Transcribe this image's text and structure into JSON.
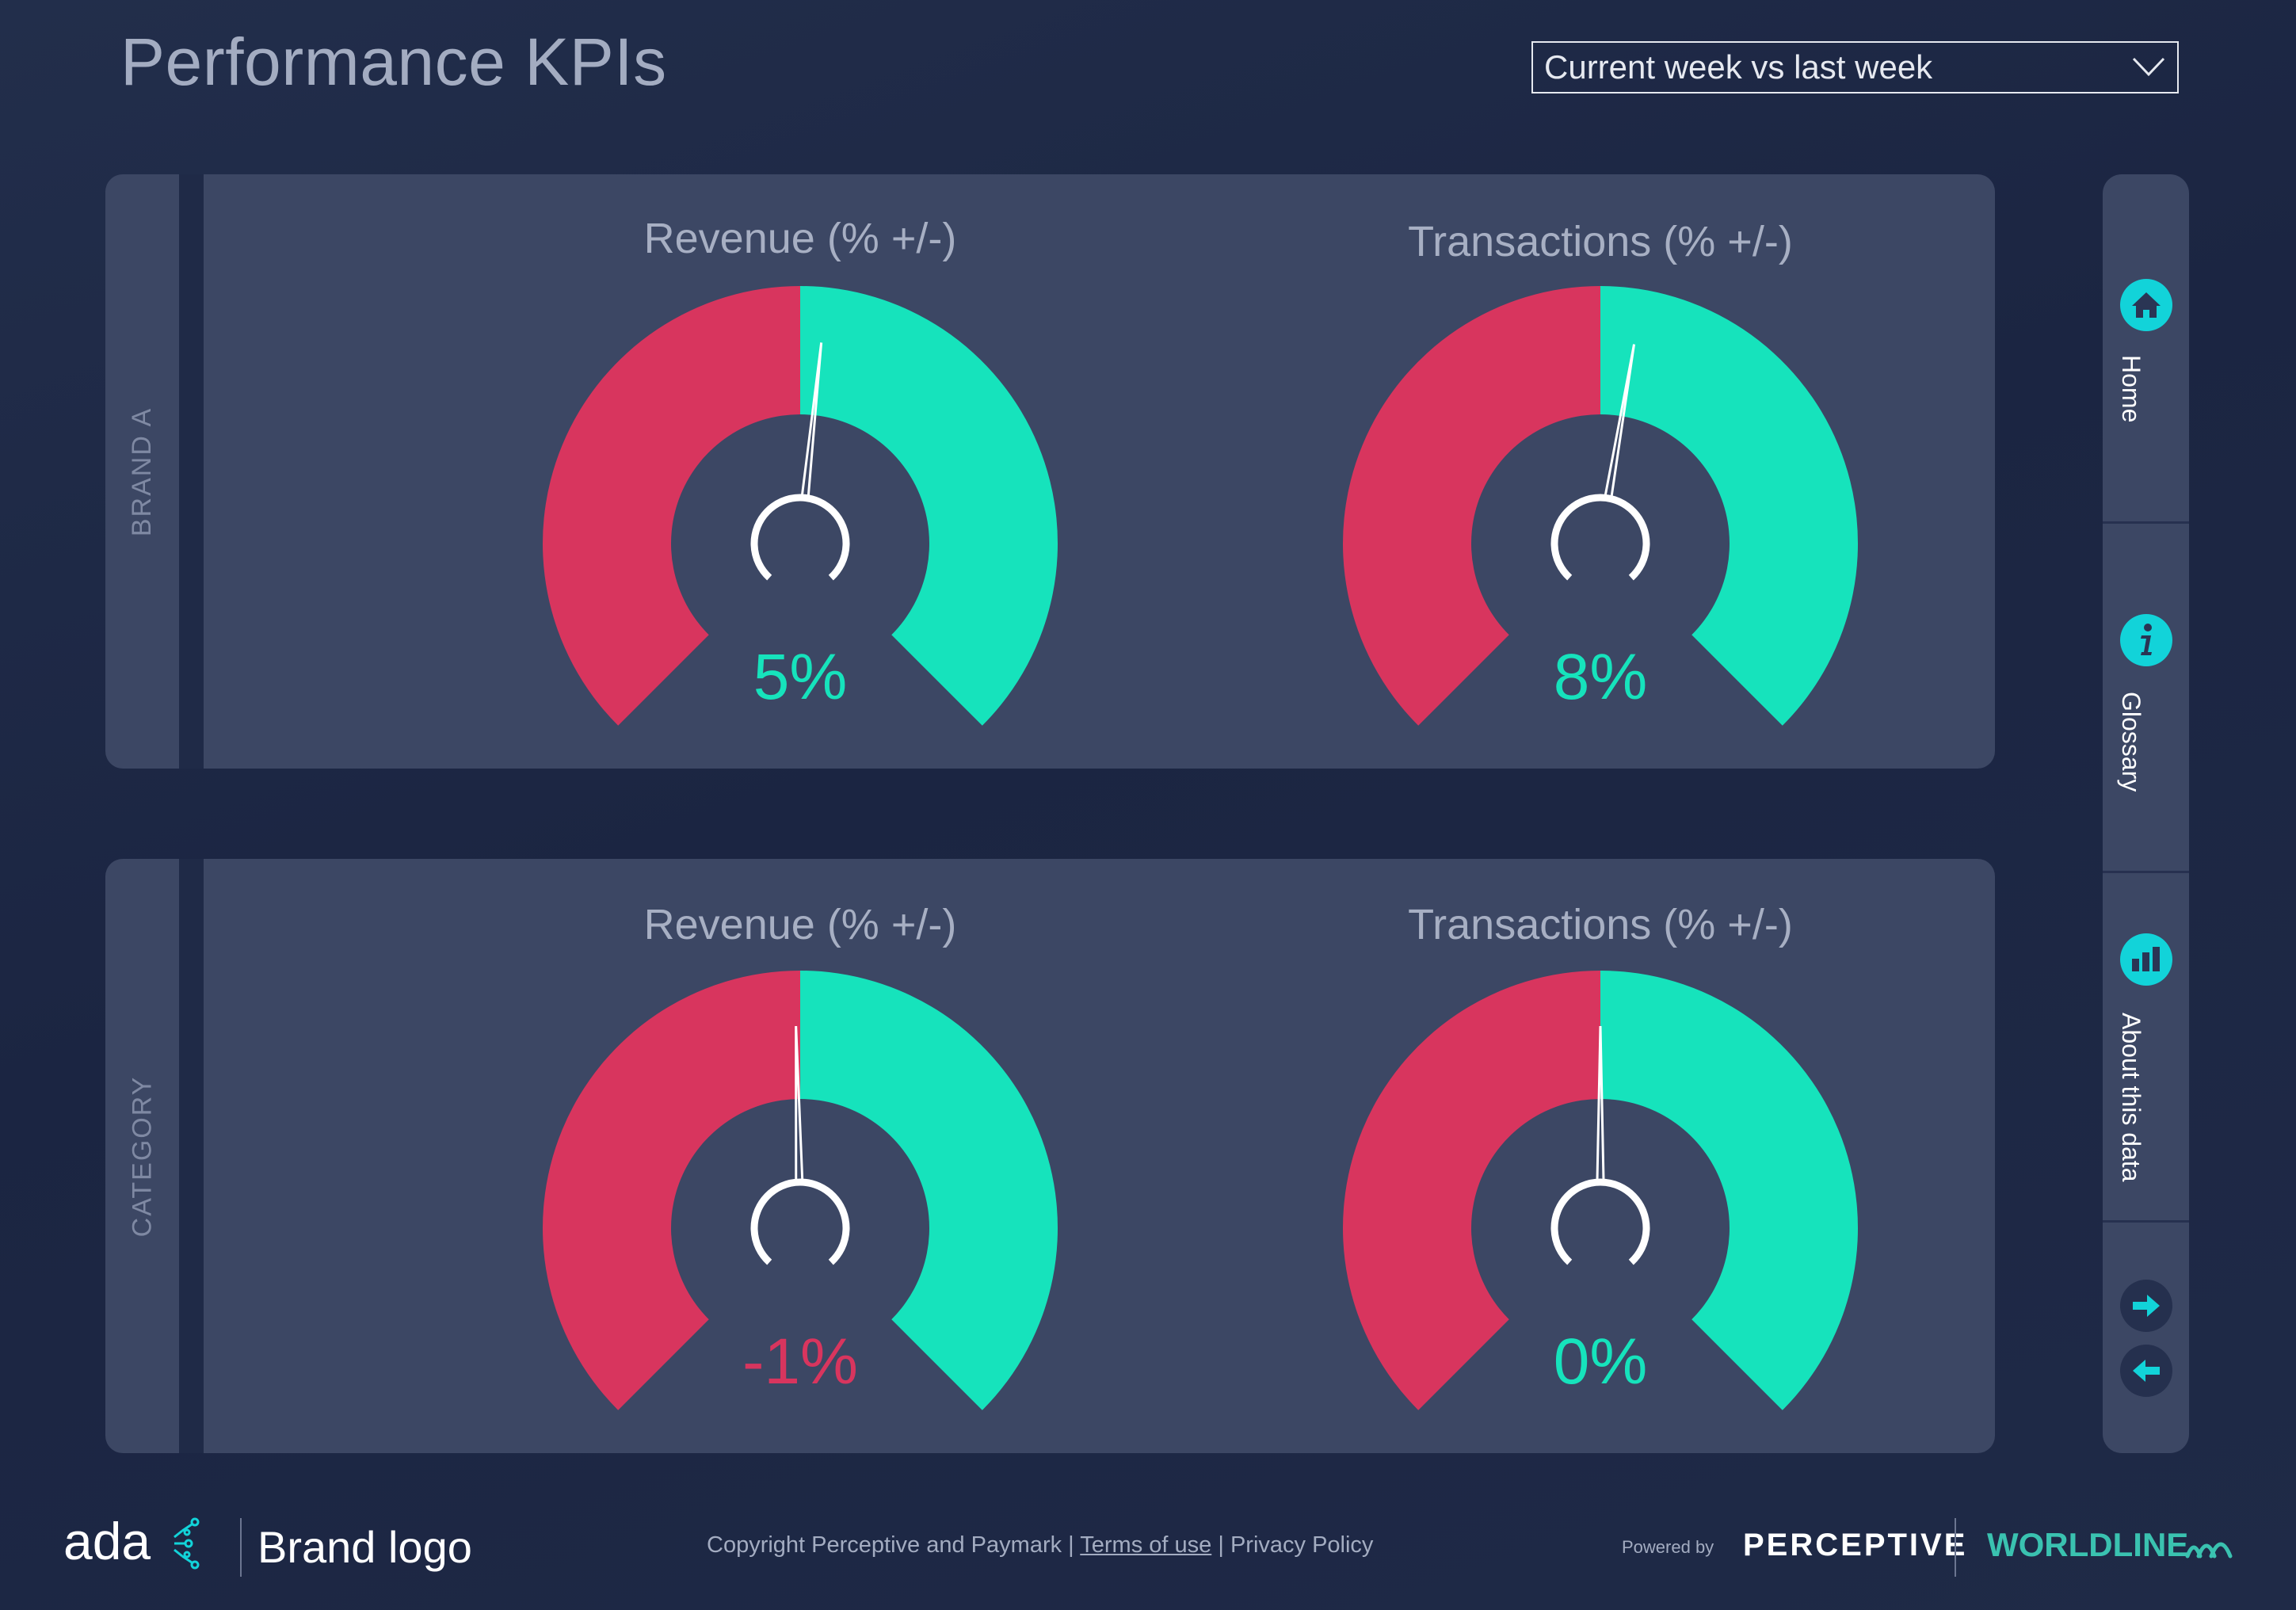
{
  "page": {
    "title": "Performance KPIs"
  },
  "period_selector": {
    "value": "Current week vs last week"
  },
  "colors": {
    "negative": "#d8355e",
    "positive": "#16e3bc",
    "panel": "#3c4764",
    "accent": "#12d3d9"
  },
  "panels": [
    {
      "label": "BRAND A",
      "gauges": [
        {
          "title": "Revenue (% +/-)",
          "value_text": "5%",
          "value": 5,
          "sign": "positive"
        },
        {
          "title": "Transactions (% +/-)",
          "value_text": "8%",
          "value": 8,
          "sign": "positive"
        }
      ]
    },
    {
      "label": "CATEGORY",
      "gauges": [
        {
          "title": "Revenue (% +/-)",
          "value_text": "-1%",
          "value": -1,
          "sign": "negative"
        },
        {
          "title": "Transactions (% +/-)",
          "value_text": "0%",
          "value": 0,
          "sign": "positive"
        }
      ]
    }
  ],
  "nav": {
    "items": [
      {
        "label": "Home",
        "icon": "home-icon"
      },
      {
        "label": "Glossary",
        "icon": "info-icon"
      },
      {
        "label": "About this data",
        "icon": "bar-chart-icon"
      }
    ],
    "next_icon": "arrow-right-icon",
    "prev_icon": "arrow-left-icon"
  },
  "footer": {
    "ada_logo": "ada",
    "brand_logo": "Brand logo",
    "copyright": "Copyright Perceptive and Paymark",
    "separator": "|",
    "terms": "Terms of use",
    "privacy": "Privacy Policy",
    "powered_by": "Powered by",
    "perceptive": "PERCEPTIVE",
    "worldline": "WORLDLINE"
  }
}
